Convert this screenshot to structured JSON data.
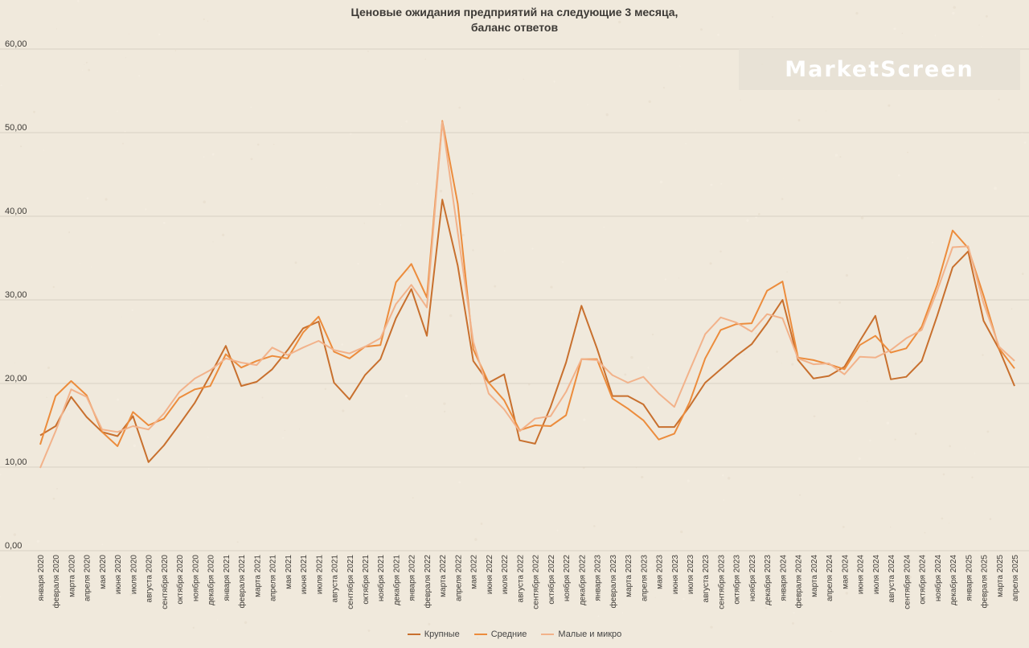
{
  "title": {
    "line1": "Ценовые ожидания предприятий на следующие 3 месяца,",
    "line2": "баланс ответов"
  },
  "watermark": "MarketScreen",
  "colors": {
    "background": "#f0e9dc",
    "grid": "#d9d1c3",
    "axis_text": "#3d3a36"
  },
  "chart_data": {
    "type": "line",
    "ylim": [
      0,
      60
    ],
    "yticks": [
      "0,00",
      "10,00",
      "20,00",
      "30,00",
      "40,00",
      "50,00",
      "60,00"
    ],
    "categories": [
      "января 2020",
      "февраля 2020",
      "марта 2020",
      "апреля 2020",
      "мая 2020",
      "июня 2020",
      "июля 2020",
      "августа 2020",
      "сентября 2020",
      "октября 2020",
      "ноября 2020",
      "декабря 2020",
      "января 2021",
      "февраля 2021",
      "марта 2021",
      "апреля 2021",
      "мая 2021",
      "июня 2021",
      "июля 2021",
      "августа 2021",
      "сентября 2021",
      "октября 2021",
      "ноября 2021",
      "декабря 2021",
      "января 2022",
      "февраля 2022",
      "марта 2022",
      "апреля 2022",
      "мая 2022",
      "июня 2022",
      "июля 2022",
      "августа 2022",
      "сентября 2022",
      "октября 2022",
      "ноября 2022",
      "декабря 2022",
      "января 2023",
      "февраля 2023",
      "марта 2023",
      "апреля 2023",
      "мая 2023",
      "июня 2023",
      "июля 2023",
      "августа 2023",
      "сентября 2023",
      "октября 2023",
      "ноября 2023",
      "декабря 2023",
      "января 2024",
      "февраля 2024",
      "марта 2024",
      "апреля 2024",
      "мая 2024",
      "июня 2024",
      "июля 2024",
      "августа 2024",
      "сентября 2024",
      "октября 2024",
      "ноября 2024",
      "декабря 2024",
      "января 2025",
      "февраля 2025",
      "марта 2025",
      "апреля 2025"
    ],
    "series": [
      {
        "name": "Крупные",
        "color": "#c8702e",
        "values": [
          13.8,
          14.9,
          18.4,
          16.0,
          14.2,
          13.7,
          16.1,
          10.6,
          12.6,
          15.1,
          17.7,
          21.0,
          24.5,
          19.7,
          20.2,
          21.7,
          24.0,
          26.6,
          27.4,
          20.1,
          18.1,
          21.0,
          22.9,
          27.8,
          31.3,
          25.7,
          42.0,
          34.1,
          22.7,
          20.1,
          21.1,
          13.2,
          12.8,
          17.2,
          22.5,
          29.3,
          24.2,
          18.5,
          18.5,
          17.5,
          14.8,
          14.8,
          17.3,
          20.1,
          21.7,
          23.3,
          24.7,
          27.2,
          30.0,
          22.8,
          20.6,
          20.9,
          22.0,
          25.1,
          28.1,
          20.5,
          20.8,
          22.7,
          28.1,
          33.9,
          35.8,
          27.5,
          24.1,
          19.7
        ]
      },
      {
        "name": "Средние",
        "color": "#ec8c3c",
        "values": [
          12.7,
          18.5,
          20.3,
          18.6,
          14.2,
          12.5,
          16.6,
          15.0,
          15.8,
          18.3,
          19.3,
          19.7,
          23.5,
          21.9,
          22.7,
          23.3,
          23.0,
          26.1,
          28.0,
          23.8,
          23.0,
          24.4,
          24.6,
          32.1,
          34.3,
          30.3,
          51.4,
          41.5,
          24.1,
          20.1,
          18.0,
          14.4,
          15.0,
          14.9,
          16.2,
          22.9,
          22.9,
          18.2,
          17.0,
          15.6,
          13.3,
          14.0,
          17.8,
          23.0,
          26.4,
          27.1,
          27.2,
          31.1,
          32.2,
          23.1,
          22.8,
          22.3,
          21.7,
          24.6,
          25.7,
          23.7,
          24.2,
          26.8,
          31.8,
          38.3,
          36.2,
          30.5,
          24.2,
          21.8
        ]
      },
      {
        "name": "Малые и микро",
        "color": "#f2b28a",
        "values": [
          9.9,
          14.3,
          19.3,
          18.4,
          14.5,
          14.2,
          14.9,
          14.5,
          16.4,
          19.0,
          20.6,
          21.6,
          23.0,
          22.5,
          22.2,
          24.3,
          23.4,
          24.3,
          25.1,
          24.0,
          23.6,
          24.4,
          25.4,
          29.5,
          31.8,
          29.1,
          51.3,
          38.1,
          25.0,
          18.8,
          16.9,
          14.3,
          15.8,
          16.1,
          19.0,
          22.9,
          22.8,
          21.0,
          20.1,
          20.8,
          18.8,
          17.2,
          21.6,
          25.9,
          27.9,
          27.3,
          26.2,
          28.3,
          27.8,
          23.0,
          22.3,
          22.4,
          21.1,
          23.2,
          23.1,
          24.0,
          25.4,
          26.4,
          31.1,
          36.3,
          36.4,
          29.6,
          24.4,
          22.7
        ]
      }
    ],
    "legend": "bottom-center",
    "grid": true
  }
}
